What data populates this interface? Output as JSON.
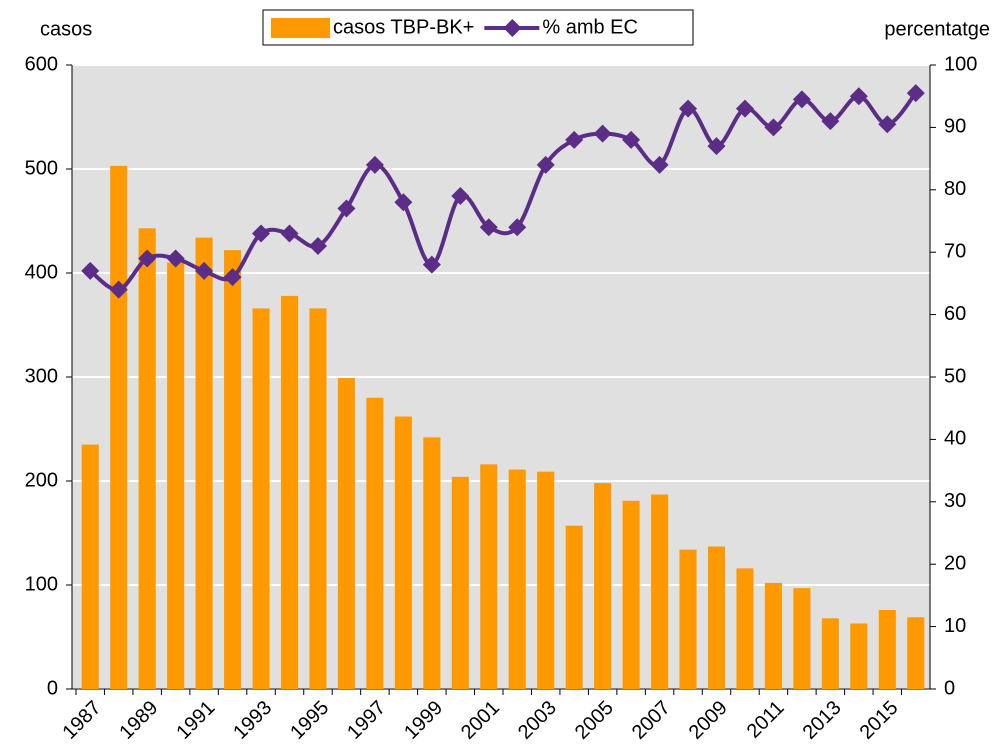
{
  "chart_data": {
    "type": "bar-line",
    "y_label": "casos",
    "y2_label": "percentatge",
    "categories": [
      "1987",
      null,
      "1989",
      null,
      "1991",
      null,
      "1993",
      null,
      "1995",
      null,
      "1997",
      null,
      "1999",
      null,
      "2001",
      null,
      "2003",
      null,
      "2005",
      null,
      "2007",
      null,
      "2009",
      null,
      "2011",
      null,
      "2013",
      null,
      "2015",
      null
    ],
    "series": [
      {
        "name": "casos TBP-BK+",
        "type": "bar",
        "color": "#ff9900",
        "values": [
          235,
          503,
          443,
          410,
          434,
          422,
          366,
          378,
          366,
          299,
          280,
          262,
          242,
          204,
          216,
          211,
          209,
          157,
          198,
          181,
          187,
          134,
          137,
          116,
          102,
          97,
          68,
          63,
          76,
          69
        ]
      },
      {
        "name": "% amb EC",
        "type": "line",
        "axis": "y2",
        "color": "#5b2d86",
        "values": [
          67,
          64,
          69,
          69,
          67,
          66,
          73,
          73,
          71,
          77,
          84,
          78,
          68,
          79,
          74,
          74,
          84,
          88,
          89,
          88,
          84,
          93,
          87,
          93,
          90,
          94.5,
          91,
          95,
          90.5,
          95.5
        ]
      }
    ],
    "ylim": [
      0,
      600
    ],
    "yticks": [
      0,
      100,
      200,
      300,
      400,
      500,
      600
    ],
    "y2lim": [
      0,
      100
    ],
    "y2ticks": [
      0,
      10,
      20,
      30,
      40,
      50,
      60,
      70,
      80,
      90,
      100
    ],
    "grid": true,
    "plot_background": "#e0e0e0",
    "legend": "top"
  }
}
